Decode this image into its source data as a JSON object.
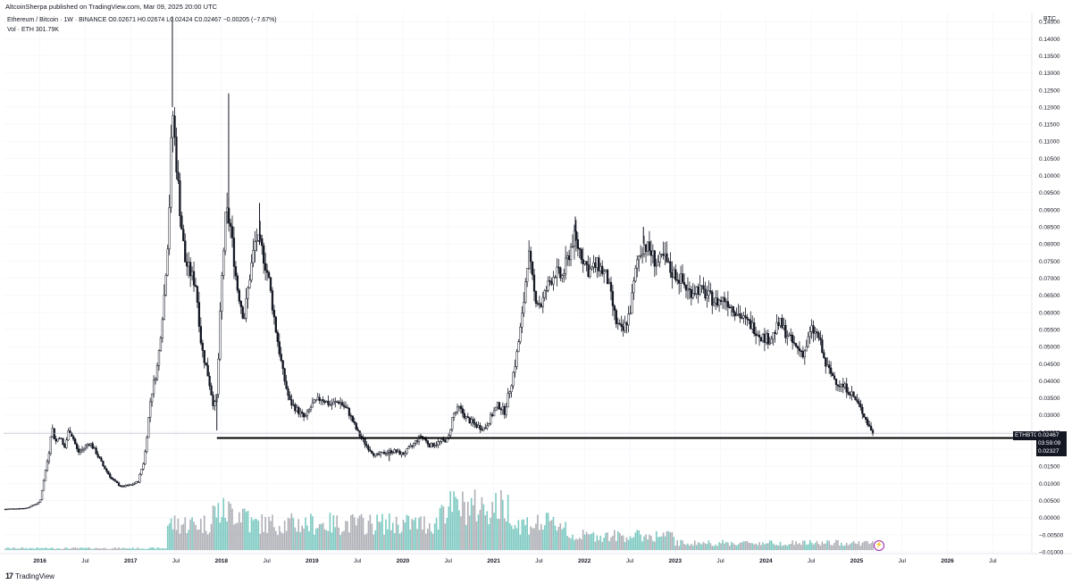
{
  "header": {
    "published": "AltcoinSherpa published on TradingView.com, Mar 09, 2025 20:00 UTC"
  },
  "legend": {
    "symbol": "Ethereum / Bitcoin · 1W · BINANCE",
    "o": "O0.02671",
    "h": "H0.02674",
    "l": "L0.02424",
    "c": "C0.02467",
    "change": "−0.00205 (−7.67%)",
    "volume": "Vol · ETH  301.79K"
  },
  "price_axis": {
    "currency": "BTC",
    "symbol_tag": "ETHBTC",
    "last_price": "0.02467",
    "countdown": "03:59:09",
    "support_level": "0.02327"
  },
  "footer": {
    "brand": "TradingView"
  },
  "colors": {
    "candle": "#131722",
    "support_line": "#000000",
    "volume_up": "#26a69a",
    "volume_down": "#787b86",
    "grid": "#f0f3fa",
    "bolt": "#9c27b0"
  },
  "icons": {
    "bolt": "bolt-icon"
  },
  "chart_data": {
    "type": "candlestick",
    "ylim": [
      -0.01,
      0.1475
    ],
    "y_ticks": [
      "0.14500",
      "0.14000",
      "0.13500",
      "0.13000",
      "0.12500",
      "0.12000",
      "0.11500",
      "0.11000",
      "0.10500",
      "0.10000",
      "0.09500",
      "0.09000",
      "0.08500",
      "0.08000",
      "0.07500",
      "0.07000",
      "0.06500",
      "0.06000",
      "0.05500",
      "0.05000",
      "0.04500",
      "0.04000",
      "0.03500",
      "0.03000",
      "0.02500",
      "0.02000",
      "0.01500",
      "0.01000",
      "0.00500",
      "0.00000",
      "−0.00500",
      "−0.01000"
    ],
    "x_ticks": [
      "2016",
      "Jul",
      "2017",
      "Jul",
      "2018",
      "Jul",
      "2019",
      "Jul",
      "2020",
      "Jul",
      "2021",
      "Jul",
      "2022",
      "Jul",
      "2023",
      "Jul",
      "2024",
      "Jul",
      "2025",
      "Jul",
      "2026",
      "Jul"
    ],
    "x_tick_dates": [
      2016.0,
      2016.5,
      2017.0,
      2017.5,
      2018.0,
      2018.5,
      2019.0,
      2019.5,
      2020.0,
      2020.5,
      2021.0,
      2021.5,
      2022.0,
      2022.5,
      2023.0,
      2023.5,
      2024.0,
      2024.5,
      2025.0,
      2025.5,
      2026.0,
      2026.5
    ],
    "xlim": [
      2015.6,
      2026.9
    ],
    "price_path": [
      [
        2015.62,
        0.0025
      ],
      [
        2015.85,
        0.0028
      ],
      [
        2016.0,
        0.0045
      ],
      [
        2016.05,
        0.012
      ],
      [
        2016.1,
        0.019
      ],
      [
        2016.13,
        0.027
      ],
      [
        2016.17,
        0.022
      ],
      [
        2016.22,
        0.024
      ],
      [
        2016.27,
        0.02
      ],
      [
        2016.32,
        0.026
      ],
      [
        2016.37,
        0.023
      ],
      [
        2016.42,
        0.019
      ],
      [
        2016.47,
        0.02
      ],
      [
        2016.55,
        0.022
      ],
      [
        2016.62,
        0.019
      ],
      [
        2016.7,
        0.015
      ],
      [
        2016.8,
        0.011
      ],
      [
        2016.9,
        0.009
      ],
      [
        2017.0,
        0.0095
      ],
      [
        2017.08,
        0.0105
      ],
      [
        2017.15,
        0.017
      ],
      [
        2017.22,
        0.035
      ],
      [
        2017.3,
        0.045
      ],
      [
        2017.37,
        0.065
      ],
      [
        2017.42,
        0.085
      ],
      [
        2017.46,
        0.12
      ],
      [
        2017.5,
        0.105
      ],
      [
        2017.55,
        0.088
      ],
      [
        2017.6,
        0.075
      ],
      [
        2017.65,
        0.072
      ],
      [
        2017.72,
        0.068
      ],
      [
        2017.78,
        0.05
      ],
      [
        2017.85,
        0.042
      ],
      [
        2017.92,
        0.032
      ],
      [
        2017.95,
        0.036
      ],
      [
        2018.0,
        0.068
      ],
      [
        2018.05,
        0.09
      ],
      [
        2018.1,
        0.085
      ],
      [
        2018.17,
        0.068
      ],
      [
        2018.25,
        0.058
      ],
      [
        2018.32,
        0.072
      ],
      [
        2018.38,
        0.082
      ],
      [
        2018.45,
        0.078
      ],
      [
        2018.52,
        0.07
      ],
      [
        2018.6,
        0.055
      ],
      [
        2018.68,
        0.042
      ],
      [
        2018.75,
        0.034
      ],
      [
        2018.85,
        0.031
      ],
      [
        2018.92,
        0.029
      ],
      [
        2019.0,
        0.033
      ],
      [
        2019.1,
        0.035
      ],
      [
        2019.2,
        0.033
      ],
      [
        2019.3,
        0.034
      ],
      [
        2019.4,
        0.031
      ],
      [
        2019.5,
        0.025
      ],
      [
        2019.6,
        0.021
      ],
      [
        2019.7,
        0.018
      ],
      [
        2019.8,
        0.019
      ],
      [
        2019.9,
        0.0195
      ],
      [
        2020.0,
        0.0185
      ],
      [
        2020.1,
        0.021
      ],
      [
        2020.2,
        0.024
      ],
      [
        2020.3,
        0.021
      ],
      [
        2020.4,
        0.022
      ],
      [
        2020.5,
        0.023
      ],
      [
        2020.55,
        0.03
      ],
      [
        2020.62,
        0.032
      ],
      [
        2020.7,
        0.029
      ],
      [
        2020.8,
        0.027
      ],
      [
        2020.9,
        0.026
      ],
      [
        2020.98,
        0.03
      ],
      [
        2021.05,
        0.033
      ],
      [
        2021.12,
        0.031
      ],
      [
        2021.2,
        0.04
      ],
      [
        2021.25,
        0.047
      ],
      [
        2021.32,
        0.06
      ],
      [
        2021.38,
        0.078
      ],
      [
        2021.45,
        0.065
      ],
      [
        2021.52,
        0.062
      ],
      [
        2021.6,
        0.068
      ],
      [
        2021.68,
        0.072
      ],
      [
        2021.75,
        0.07
      ],
      [
        2021.82,
        0.076
      ],
      [
        2021.88,
        0.082
      ],
      [
        2021.95,
        0.078
      ],
      [
        2022.05,
        0.072
      ],
      [
        2022.15,
        0.074
      ],
      [
        2022.25,
        0.07
      ],
      [
        2022.35,
        0.057
      ],
      [
        2022.42,
        0.054
      ],
      [
        2022.5,
        0.06
      ],
      [
        2022.58,
        0.075
      ],
      [
        2022.65,
        0.08
      ],
      [
        2022.72,
        0.078
      ],
      [
        2022.8,
        0.074
      ],
      [
        2022.88,
        0.076
      ],
      [
        2022.95,
        0.072
      ],
      [
        2023.05,
        0.07
      ],
      [
        2023.15,
        0.066
      ],
      [
        2023.25,
        0.067
      ],
      [
        2023.35,
        0.065
      ],
      [
        2023.45,
        0.063
      ],
      [
        2023.55,
        0.064
      ],
      [
        2023.65,
        0.061
      ],
      [
        2023.75,
        0.058
      ],
      [
        2023.85,
        0.056
      ],
      [
        2023.95,
        0.053
      ],
      [
        2024.05,
        0.052
      ],
      [
        2024.15,
        0.057
      ],
      [
        2024.22,
        0.054
      ],
      [
        2024.32,
        0.05
      ],
      [
        2024.42,
        0.048
      ],
      [
        2024.5,
        0.055
      ],
      [
        2024.58,
        0.053
      ],
      [
        2024.65,
        0.045
      ],
      [
        2024.72,
        0.042
      ],
      [
        2024.8,
        0.039
      ],
      [
        2024.88,
        0.038
      ],
      [
        2024.95,
        0.036
      ],
      [
        2025.02,
        0.033
      ],
      [
        2025.08,
        0.03
      ],
      [
        2025.13,
        0.027
      ],
      [
        2025.18,
        0.0247
      ]
    ],
    "wicks": [
      [
        2017.46,
        0.1465
      ],
      [
        2018.08,
        0.124
      ],
      [
        2018.42,
        0.092
      ],
      [
        2021.9,
        0.088
      ],
      [
        2022.65,
        0.085
      ],
      [
        2017.95,
        0.0255
      ],
      [
        2019.85,
        0.0165
      ]
    ],
    "support_line": {
      "value": 0.02327,
      "x_start": 2017.95,
      "x_end": 2025.2
    },
    "price_line": {
      "value": 0.02467
    },
    "volume_base": -0.0095,
    "volume_scale_max": 0.0215
  }
}
